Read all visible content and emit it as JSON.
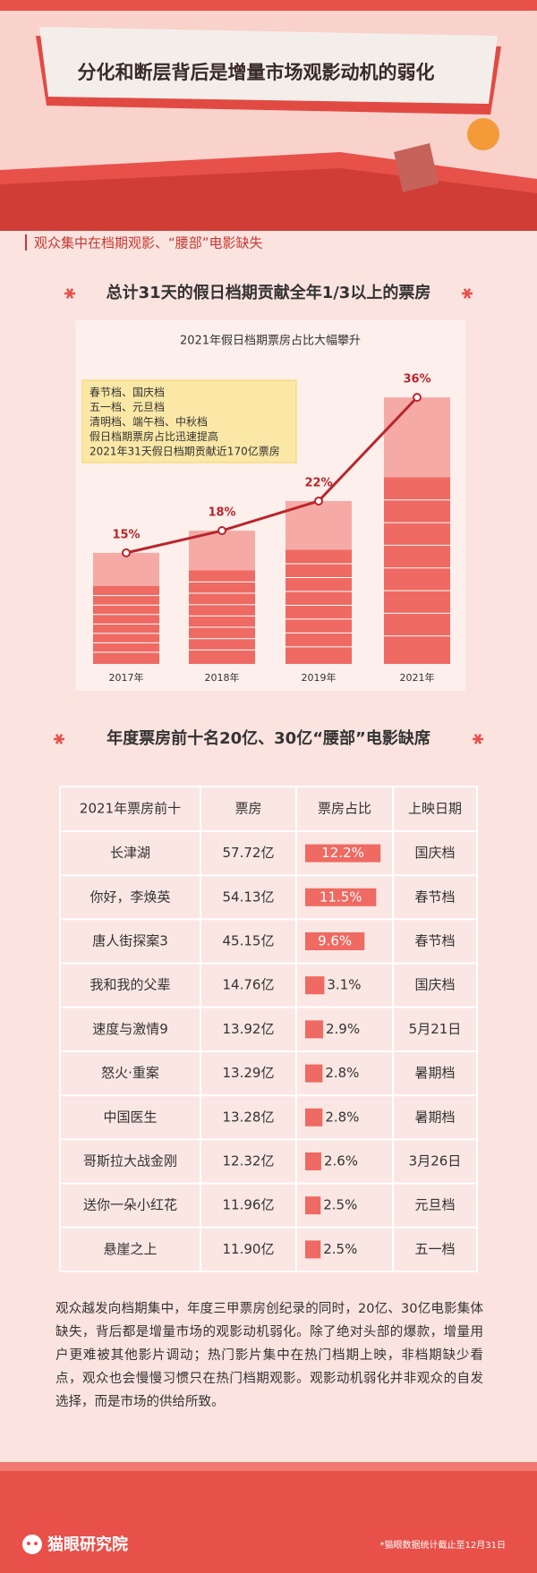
{
  "header": {
    "title": "分化和断层背后是增量市场观影动机的弱化",
    "subtitle": "观众集中在档期观影、“腰部”电影缺失"
  },
  "section1_title": "总计31天的假日档期贡献全年1/3以上的票房",
  "chart_data": {
    "type": "bar_line",
    "title": "2021年假日档期票房占比大幅攀升",
    "categories": [
      "2017年",
      "2018年",
      "2019年",
      "2021年"
    ],
    "values": [
      15,
      18,
      22,
      36
    ],
    "value_labels": [
      "15%",
      "18%",
      "22%",
      "36%"
    ],
    "color": "#ee6a62",
    "line_color": "#b8262c",
    "ylim": [
      0,
      40
    ],
    "annotation": [
      "春节档、国庆档",
      "五一档、元旦档",
      "清明档、端午档、中秋档",
      "假日档期票房占比迅速提高",
      "2021年31天假日档期贡献近170亿票房"
    ]
  },
  "section2_title": "年度票房前十名20亿、30亿“腰部”电影缺席",
  "table": {
    "columns": [
      "2021年票房前十",
      "票房",
      "票房占比",
      "上映日期"
    ],
    "bar_color": "#ee6a62",
    "rows": [
      {
        "film": "长津湖",
        "gross": "57.72亿",
        "share": 12.2,
        "share_label": "12.2%",
        "release": "国庆档"
      },
      {
        "film": "你好，李焕英",
        "gross": "54.13亿",
        "share": 11.5,
        "share_label": "11.5%",
        "release": "春节档"
      },
      {
        "film": "唐人街探案3",
        "gross": "45.15亿",
        "share": 9.6,
        "share_label": "9.6%",
        "release": "春节档"
      },
      {
        "film": "我和我的父辈",
        "gross": "14.76亿",
        "share": 3.1,
        "share_label": "3.1%",
        "release": "国庆档"
      },
      {
        "film": "速度与激情9",
        "gross": "13.92亿",
        "share": 2.9,
        "share_label": "2.9%",
        "release": "5月21日"
      },
      {
        "film": "怒火·重案",
        "gross": "13.29亿",
        "share": 2.8,
        "share_label": "2.8%",
        "release": "暑期档"
      },
      {
        "film": "中国医生",
        "gross": "13.28亿",
        "share": 2.8,
        "share_label": "2.8%",
        "release": "暑期档"
      },
      {
        "film": "哥斯拉大战金刚",
        "gross": "12.32亿",
        "share": 2.6,
        "share_label": "2.6%",
        "release": "3月26日"
      },
      {
        "film": "送你一朵小红花",
        "gross": "11.96亿",
        "share": 2.5,
        "share_label": "2.5%",
        "release": "元旦档"
      },
      {
        "film": "悬崖之上",
        "gross": "11.90亿",
        "share": 2.5,
        "share_label": "2.5%",
        "release": "五一档"
      }
    ]
  },
  "paragraph": "观众越发向档期集中，年度三甲票房创纪录的同时，20亿、30亿电影集体缺失，背后都是增量市场的观影动机弱化。除了绝对头部的爆款，增量用户更难被其他影片调动；热门影片集中在热门档期上映，非档期缺少看点，观众也会慢慢习惯只在热门档期观影。观影动机弱化并非观众的自发选择，而是市场的供给所致。",
  "footer": {
    "brand": "猫眼研究院",
    "note": "*猫眼数据统计截止至12月31日"
  }
}
